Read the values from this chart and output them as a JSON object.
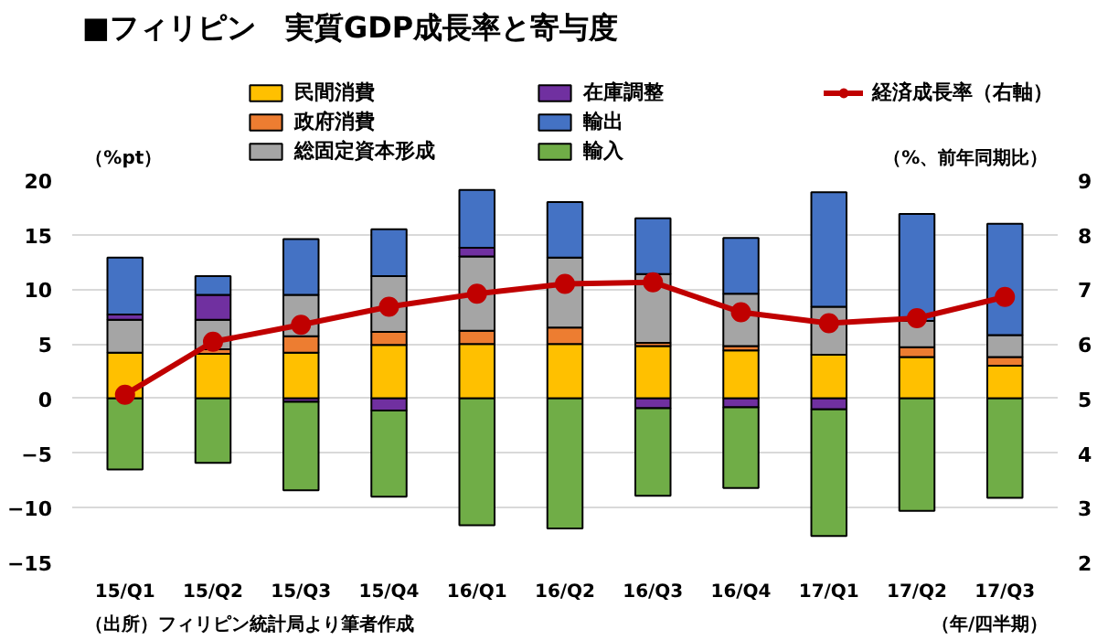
{
  "chart_data": {
    "type": "bar",
    "stacked": true,
    "title": "■フィリピン　実質GDP成長率と寄与度",
    "ylabel": "（%pt）",
    "y2label": "（%、前年同期比）",
    "categories": [
      "15/Q1",
      "15/Q2",
      "15/Q3",
      "15/Q4",
      "16/Q1",
      "16/Q2",
      "16/Q3",
      "16/Q4",
      "17/Q1",
      "17/Q2",
      "17/Q3"
    ],
    "series": [
      {
        "name": "民間消費",
        "color": "#ffc000",
        "values": [
          4.2,
          4.1,
          4.2,
          4.9,
          5.0,
          5.0,
          4.8,
          4.4,
          4.0,
          3.8,
          3.0
        ]
      },
      {
        "name": "政府消費",
        "color": "#ed7d31",
        "values": [
          null,
          0.4,
          1.5,
          1.2,
          1.2,
          1.5,
          0.3,
          0.4,
          null,
          0.9,
          0.8
        ]
      },
      {
        "name": "総固定資本形成",
        "color": "#a5a5a5",
        "values": [
          3.0,
          2.7,
          3.8,
          5.1,
          6.8,
          6.4,
          6.3,
          4.8,
          4.4,
          2.4,
          2.0
        ]
      },
      {
        "name": "在庫調整",
        "color": "#7030a0",
        "values": [
          0.5,
          2.3,
          -0.3,
          -1.1,
          0.8,
          null,
          -0.9,
          -0.8,
          -1.0,
          null,
          null
        ]
      },
      {
        "name": "輸出",
        "color": "#4472c4",
        "values": [
          5.2,
          1.7,
          5.1,
          4.3,
          5.3,
          5.1,
          5.1,
          5.1,
          10.5,
          9.8,
          10.2
        ]
      },
      {
        "name": "輸入",
        "color": "#70ad47",
        "values": [
          -6.5,
          -5.9,
          -8.1,
          -7.9,
          -11.6,
          -11.9,
          -8.0,
          -7.4,
          -11.6,
          -10.3,
          -9.1
        ]
      },
      {
        "name": "経済成長率（右軸）",
        "type": "line",
        "axis": "y2",
        "color": "#c00000",
        "marker": "circle",
        "values": [
          5.07,
          6.04,
          6.35,
          6.68,
          6.92,
          7.1,
          7.13,
          6.58,
          6.38,
          6.47,
          6.86
        ]
      }
    ],
    "ylim": [
      -15,
      20
    ],
    "yticks": [
      -15,
      -10,
      -5,
      0,
      5,
      10,
      15,
      20
    ],
    "y2lim": [
      2,
      9
    ],
    "y2ticks": [
      2,
      3,
      4,
      5,
      6,
      7,
      8,
      9
    ],
    "grid": "y",
    "legend": "top",
    "annotations": [
      "（出所）フィリピン統計局より筆者作成",
      "（年/四半期）"
    ]
  }
}
